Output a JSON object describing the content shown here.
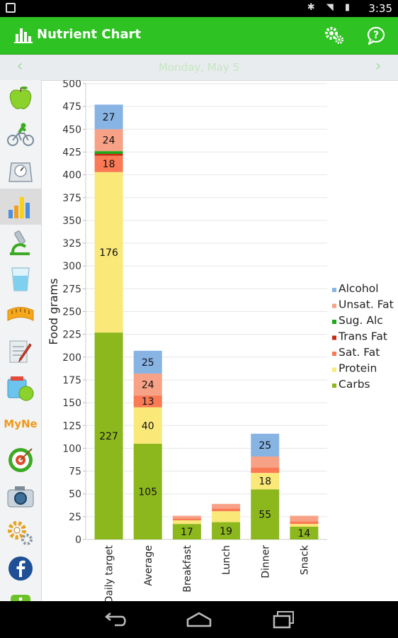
{
  "status_bar": {
    "time": "3:35"
  },
  "header": {
    "title": "Nutrient Chart"
  },
  "date_nav": {
    "date": "Monday, May 5",
    "prev": "‹",
    "next": "›"
  },
  "sidebar": {
    "items": [
      {
        "icon": "apple-icon"
      },
      {
        "icon": "cyclist-icon"
      },
      {
        "icon": "scale-icon"
      },
      {
        "icon": "bar-chart-icon",
        "active": true
      },
      {
        "icon": "microscope-icon"
      },
      {
        "icon": "water-glass-icon"
      },
      {
        "icon": "measuring-tape-icon"
      },
      {
        "icon": "notepad-pencil-icon"
      },
      {
        "icon": "food-jar-icon"
      },
      {
        "label": "MyNe"
      },
      {
        "icon": "target-icon"
      },
      {
        "icon": "camera-icon"
      },
      {
        "icon": "settings-gear-icon"
      },
      {
        "icon": "facebook-icon"
      },
      {
        "icon": "info-icon"
      }
    ]
  },
  "chart_data": {
    "type": "bar",
    "stacked": true,
    "ylabel": "Food grams",
    "xlabel": "",
    "ylim": [
      0,
      500
    ],
    "yticks": [
      0,
      25,
      50,
      75,
      100,
      125,
      150,
      175,
      200,
      225,
      250,
      275,
      300,
      325,
      350,
      375,
      400,
      425,
      450,
      475,
      500
    ],
    "categories": [
      "Daily target",
      "Average",
      "Breakfast",
      "Lunch",
      "Dinner",
      "Snack"
    ],
    "legend_position": "right",
    "grid": true,
    "series": [
      {
        "name": "Carbs",
        "color": "#8cb81e",
        "values": [
          227,
          105,
          17,
          19,
          55,
          14
        ]
      },
      {
        "name": "Protein",
        "color": "#fae878",
        "values": [
          176,
          40,
          4,
          12,
          18,
          3
        ]
      },
      {
        "name": "Sat. Fat",
        "color": "#fa7a55",
        "values": [
          18,
          13,
          2,
          3,
          6,
          3
        ]
      },
      {
        "name": "Trans Fat",
        "color": "#c42a12",
        "values": [
          2,
          0,
          0,
          0,
          0,
          0
        ]
      },
      {
        "name": "Sug. Alc",
        "color": "#20a81c",
        "values": [
          3,
          0,
          0,
          0,
          0,
          0
        ]
      },
      {
        "name": "Unsat. Fat",
        "color": "#f7a286",
        "values": [
          24,
          24,
          3,
          5,
          12,
          6
        ]
      },
      {
        "name": "Alcohol",
        "color": "#88b4e4",
        "values": [
          27,
          25,
          0,
          0,
          25,
          0
        ]
      }
    ],
    "data_labels": [
      {
        "category": "Daily target",
        "series": "Carbs",
        "text": "227"
      },
      {
        "category": "Daily target",
        "series": "Protein",
        "text": "176"
      },
      {
        "category": "Daily target",
        "series": "Sat. Fat",
        "text": "18"
      },
      {
        "category": "Daily target",
        "series": "Unsat. Fat",
        "text": "24"
      },
      {
        "category": "Daily target",
        "series": "Alcohol",
        "text": "27"
      },
      {
        "category": "Average",
        "series": "Carbs",
        "text": "105"
      },
      {
        "category": "Average",
        "series": "Protein",
        "text": "40"
      },
      {
        "category": "Average",
        "series": "Sat. Fat",
        "text": "13"
      },
      {
        "category": "Average",
        "series": "Unsat. Fat",
        "text": "24"
      },
      {
        "category": "Average",
        "series": "Alcohol",
        "text": "25"
      },
      {
        "category": "Breakfast",
        "series": "Carbs",
        "text": "17"
      },
      {
        "category": "Lunch",
        "series": "Carbs",
        "text": "19"
      },
      {
        "category": "Dinner",
        "series": "Carbs",
        "text": "55"
      },
      {
        "category": "Dinner",
        "series": "Protein",
        "text": "18"
      },
      {
        "category": "Dinner",
        "series": "Alcohol",
        "text": "25"
      },
      {
        "category": "Snack",
        "series": "Carbs",
        "text": "14"
      }
    ]
  }
}
